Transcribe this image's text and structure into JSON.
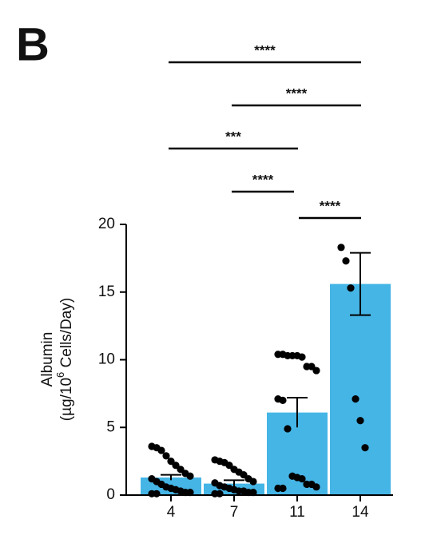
{
  "chart_data": {
    "type": "bar",
    "panel_label": "B",
    "ylabel": "Albumin",
    "ylabel_unit": {
      "before": "(µg/10",
      "sup": "6",
      "after": " Cells/Day)"
    },
    "categories": [
      "4",
      "7",
      "11",
      "14"
    ],
    "values": [
      1.3,
      0.85,
      6.1,
      15.6
    ],
    "errors": [
      0.2,
      0.25,
      1.1,
      2.3
    ],
    "points": [
      [
        3.6,
        3.5,
        3.3,
        2.9,
        2.5,
        2.2,
        1.9,
        1.6,
        1.4,
        1.2,
        1.0,
        0.8,
        0.6,
        0.5,
        0.4,
        0.3,
        0.2,
        0.2,
        0.1,
        0.1
      ],
      [
        2.6,
        2.5,
        2.4,
        2.2,
        1.9,
        1.7,
        1.5,
        1.2,
        1.0,
        0.9,
        0.7,
        0.6,
        0.5,
        0.4,
        0.3,
        0.3,
        0.2,
        0.2,
        0.1,
        0.1
      ],
      [
        10.4,
        10.4,
        10.3,
        10.3,
        10.3,
        10.2,
        9.5,
        9.5,
        9.2,
        7.1,
        7.0,
        4.9,
        1.4,
        1.3,
        1.2,
        0.8,
        0.8,
        0.6,
        0.5,
        0.5
      ],
      [
        18.3,
        17.3,
        15.3,
        7.1,
        5.5,
        3.5
      ]
    ],
    "color": "#45b5e6",
    "point_color": "#000000",
    "ylim": [
      0,
      20
    ],
    "yticks": [
      0,
      5,
      10,
      15,
      20
    ],
    "comparisons": [
      {
        "label": "****",
        "groups": [
          "4",
          "14"
        ]
      },
      {
        "label": "****",
        "groups": [
          "7",
          "14"
        ]
      },
      {
        "label": "***",
        "groups": [
          "4",
          "11"
        ]
      },
      {
        "label": "****",
        "groups": [
          "7",
          "11"
        ]
      },
      {
        "label": "****",
        "groups": [
          "11",
          "14"
        ]
      }
    ]
  }
}
